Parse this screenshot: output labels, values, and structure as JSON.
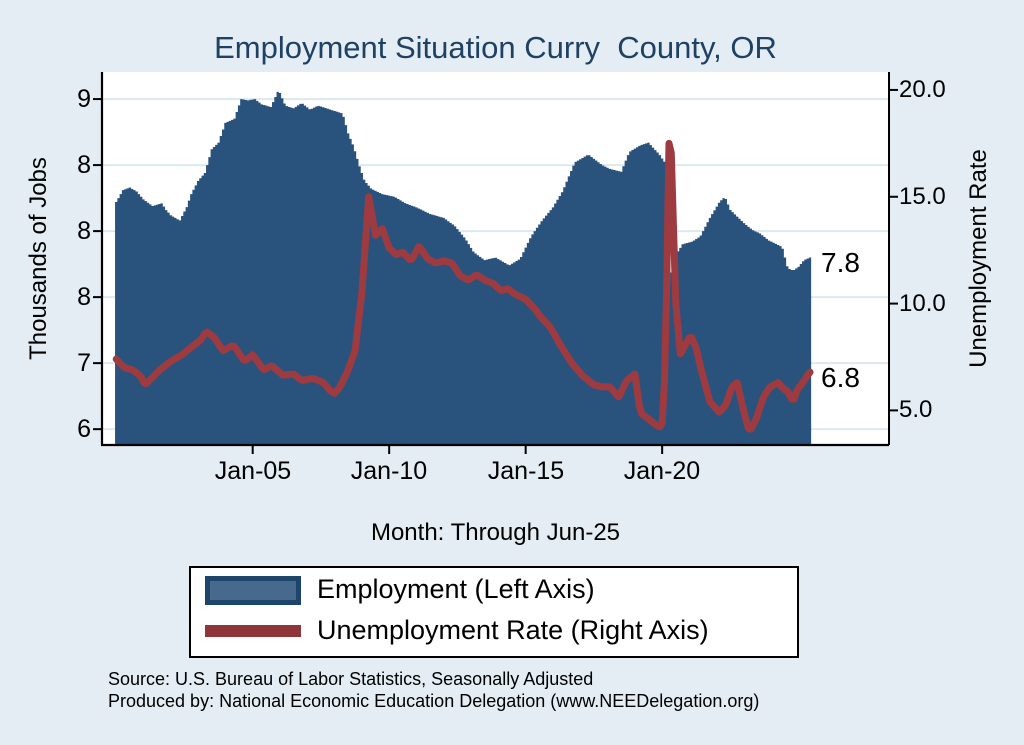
{
  "title": "Employment Situation Curry  County, OR",
  "subtitle": "Month: Through Jun-25",
  "left_axis": {
    "title": "Thousands of Jobs",
    "tick_labels": [
      "9",
      "8",
      "8",
      "8",
      "7",
      "6"
    ],
    "tick_values": [
      9,
      8.5,
      8,
      7.5,
      7,
      6.5
    ]
  },
  "right_axis": {
    "title": "Unemployment Rate",
    "tick_labels": [
      "20.0",
      "15.0",
      "10.0",
      "5.0"
    ],
    "tick_values": [
      20,
      15,
      10,
      5
    ]
  },
  "x_axis": {
    "tick_labels": [
      "Jan-05",
      "Jan-10",
      "Jan-15",
      "Jan-20"
    ],
    "tick_values": [
      2005,
      2010,
      2015,
      2020
    ]
  },
  "annotations": {
    "employment_last": "7.8",
    "unemployment_last": "6.8"
  },
  "legend": {
    "entries": [
      {
        "label": "Employment (Left Axis)",
        "swatch": "area"
      },
      {
        "label": "Unemployment Rate (Right Axis)",
        "swatch": "line"
      }
    ]
  },
  "footer": {
    "line1": "Source: U.S. Bureau of Labor Statistics, Seasonally Adjusted",
    "line2": "Produced by: National Economic Education Delegation (www.NEEDelegation.org)"
  },
  "colors": {
    "background": "#e3edf3",
    "plot_background": "#ffffff",
    "gridline": "#dde9f1",
    "axis": "#000000",
    "title": "#1e4164",
    "employment_fill": "#29537c",
    "unemployment_line": "#9d3b41",
    "legend_swatch_fill": "#47698c",
    "legend_swatch_border": "#1c4569",
    "legend_line": "#8f3539"
  },
  "chart_data": {
    "type": "area+line",
    "x_unit": "decimal_year",
    "xlim": [
      1999.48,
      2028.31
    ],
    "left_ylim": [
      6.38,
      9.205
    ],
    "right_ylim": [
      3.38,
      20.84
    ],
    "grid": true,
    "legend_position": "bottom",
    "title": "Employment Situation Curry  County, OR",
    "xlabel": "Month: Through Jun-25",
    "ylabel_left": "Thousands of Jobs",
    "ylabel_right": "Unemployment Rate",
    "series": [
      {
        "name": "Employment (Left Axis)",
        "axis": "left",
        "type": "area",
        "units": "thousands of jobs",
        "points": [
          [
            2000.0,
            8.22
          ],
          [
            2000.25,
            8.31
          ],
          [
            2000.5,
            8.33
          ],
          [
            2000.75,
            8.3
          ],
          [
            2001.0,
            8.24
          ],
          [
            2001.33,
            8.19
          ],
          [
            2001.67,
            8.21
          ],
          [
            2001.83,
            8.16
          ],
          [
            2002.0,
            8.12
          ],
          [
            2002.33,
            8.08
          ],
          [
            2002.58,
            8.18
          ],
          [
            2002.75,
            8.28
          ],
          [
            2003.0,
            8.38
          ],
          [
            2003.25,
            8.44
          ],
          [
            2003.5,
            8.62
          ],
          [
            2003.75,
            8.67
          ],
          [
            2004.0,
            8.82
          ],
          [
            2004.33,
            8.85
          ],
          [
            2004.58,
            9.0
          ],
          [
            2004.83,
            8.99
          ],
          [
            2005.08,
            9.0
          ],
          [
            2005.33,
            8.96
          ],
          [
            2005.67,
            8.94
          ],
          [
            2005.95,
            9.07
          ],
          [
            2006.2,
            8.95
          ],
          [
            2006.5,
            8.93
          ],
          [
            2006.8,
            8.97
          ],
          [
            2007.1,
            8.92
          ],
          [
            2007.4,
            8.95
          ],
          [
            2007.7,
            8.93
          ],
          [
            2008.0,
            8.91
          ],
          [
            2008.3,
            8.89
          ],
          [
            2008.5,
            8.74
          ],
          [
            2008.7,
            8.64
          ],
          [
            2008.9,
            8.5
          ],
          [
            2009.1,
            8.38
          ],
          [
            2009.35,
            8.32
          ],
          [
            2009.75,
            8.28
          ],
          [
            2010.2,
            8.26
          ],
          [
            2010.6,
            8.21
          ],
          [
            2011.0,
            8.18
          ],
          [
            2011.5,
            8.13
          ],
          [
            2012.0,
            8.1
          ],
          [
            2012.4,
            8.04
          ],
          [
            2012.8,
            7.94
          ],
          [
            2013.1,
            7.84
          ],
          [
            2013.5,
            7.78
          ],
          [
            2013.9,
            7.8
          ],
          [
            2014.4,
            7.74
          ],
          [
            2014.8,
            7.79
          ],
          [
            2015.2,
            7.96
          ],
          [
            2015.6,
            8.08
          ],
          [
            2016.0,
            8.18
          ],
          [
            2016.35,
            8.3
          ],
          [
            2016.8,
            8.52
          ],
          [
            2017.3,
            8.58
          ],
          [
            2017.8,
            8.5
          ],
          [
            2018.1,
            8.47
          ],
          [
            2018.5,
            8.45
          ],
          [
            2018.8,
            8.6
          ],
          [
            2019.2,
            8.65
          ],
          [
            2019.5,
            8.67
          ],
          [
            2019.9,
            8.58
          ],
          [
            2020.1,
            8.52
          ],
          [
            2020.25,
            7.62
          ],
          [
            2020.5,
            7.82
          ],
          [
            2020.75,
            7.9
          ],
          [
            2021.1,
            7.92
          ],
          [
            2021.4,
            7.96
          ],
          [
            2021.75,
            8.1
          ],
          [
            2022.1,
            8.22
          ],
          [
            2022.3,
            8.26
          ],
          [
            2022.5,
            8.16
          ],
          [
            2022.7,
            8.12
          ],
          [
            2023.0,
            8.06
          ],
          [
            2023.3,
            8.01
          ],
          [
            2023.6,
            7.98
          ],
          [
            2023.9,
            7.93
          ],
          [
            2024.2,
            7.9
          ],
          [
            2024.4,
            7.88
          ],
          [
            2024.6,
            7.72
          ],
          [
            2024.8,
            7.7
          ],
          [
            2025.0,
            7.73
          ],
          [
            2025.2,
            7.78
          ],
          [
            2025.42,
            7.8
          ]
        ],
        "last_value": 7.8
      },
      {
        "name": "Unemployment Rate (Right Axis)",
        "axis": "right",
        "type": "line",
        "units": "percent",
        "points": [
          [
            2000.0,
            7.4
          ],
          [
            2000.3,
            7.0
          ],
          [
            2000.6,
            6.9
          ],
          [
            2000.9,
            6.6
          ],
          [
            2001.05,
            6.2
          ],
          [
            2001.3,
            6.5
          ],
          [
            2001.6,
            6.9
          ],
          [
            2002.0,
            7.3
          ],
          [
            2002.4,
            7.6
          ],
          [
            2002.7,
            7.9
          ],
          [
            2003.1,
            8.3
          ],
          [
            2003.3,
            8.7
          ],
          [
            2003.6,
            8.4
          ],
          [
            2003.9,
            7.8
          ],
          [
            2004.3,
            8.05
          ],
          [
            2004.7,
            7.3
          ],
          [
            2005.0,
            7.6
          ],
          [
            2005.4,
            6.9
          ],
          [
            2005.7,
            7.1
          ],
          [
            2006.1,
            6.65
          ],
          [
            2006.5,
            6.7
          ],
          [
            2006.8,
            6.4
          ],
          [
            2007.2,
            6.5
          ],
          [
            2007.6,
            6.3
          ],
          [
            2007.85,
            5.9
          ],
          [
            2008.0,
            5.8
          ],
          [
            2008.2,
            6.1
          ],
          [
            2008.5,
            6.9
          ],
          [
            2008.75,
            7.8
          ],
          [
            2009.0,
            10.5
          ],
          [
            2009.25,
            15.0
          ],
          [
            2009.5,
            13.2
          ],
          [
            2009.75,
            13.5
          ],
          [
            2010.0,
            12.6
          ],
          [
            2010.25,
            12.3
          ],
          [
            2010.5,
            12.4
          ],
          [
            2010.8,
            12.0
          ],
          [
            2011.1,
            12.7
          ],
          [
            2011.4,
            12.1
          ],
          [
            2011.7,
            11.9
          ],
          [
            2012.0,
            12.0
          ],
          [
            2012.3,
            11.9
          ],
          [
            2012.6,
            11.3
          ],
          [
            2012.9,
            11.1
          ],
          [
            2013.2,
            11.35
          ],
          [
            2013.5,
            11.1
          ],
          [
            2013.8,
            10.95
          ],
          [
            2014.1,
            10.6
          ],
          [
            2014.35,
            10.7
          ],
          [
            2014.6,
            10.45
          ],
          [
            2015.0,
            10.2
          ],
          [
            2015.3,
            9.8
          ],
          [
            2015.6,
            9.3
          ],
          [
            2015.9,
            8.9
          ],
          [
            2016.3,
            8.0
          ],
          [
            2016.7,
            7.2
          ],
          [
            2017.1,
            6.6
          ],
          [
            2017.5,
            6.2
          ],
          [
            2017.8,
            6.1
          ],
          [
            2018.1,
            6.1
          ],
          [
            2018.4,
            5.6
          ],
          [
            2018.7,
            6.4
          ],
          [
            2019.0,
            6.7
          ],
          [
            2019.2,
            4.9
          ],
          [
            2019.5,
            4.6
          ],
          [
            2019.9,
            4.2
          ],
          [
            2020.05,
            4.5
          ],
          [
            2020.17,
            11.0
          ],
          [
            2020.25,
            17.5
          ],
          [
            2020.33,
            17.2
          ],
          [
            2020.5,
            10.0
          ],
          [
            2020.67,
            7.6
          ],
          [
            2020.9,
            8.2
          ],
          [
            2021.05,
            8.5
          ],
          [
            2021.25,
            7.9
          ],
          [
            2021.45,
            6.8
          ],
          [
            2021.75,
            5.4
          ],
          [
            2022.1,
            4.9
          ],
          [
            2022.35,
            5.3
          ],
          [
            2022.55,
            6.1
          ],
          [
            2022.75,
            6.3
          ],
          [
            2023.0,
            4.9
          ],
          [
            2023.2,
            4.0
          ],
          [
            2023.45,
            4.6
          ],
          [
            2023.7,
            5.6
          ],
          [
            2023.95,
            6.1
          ],
          [
            2024.25,
            6.3
          ],
          [
            2024.45,
            6.0
          ],
          [
            2024.6,
            5.9
          ],
          [
            2024.8,
            5.4
          ],
          [
            2024.95,
            6.0
          ],
          [
            2025.1,
            6.2
          ],
          [
            2025.25,
            6.5
          ],
          [
            2025.42,
            6.8
          ]
        ],
        "last_value": 6.8
      }
    ]
  }
}
